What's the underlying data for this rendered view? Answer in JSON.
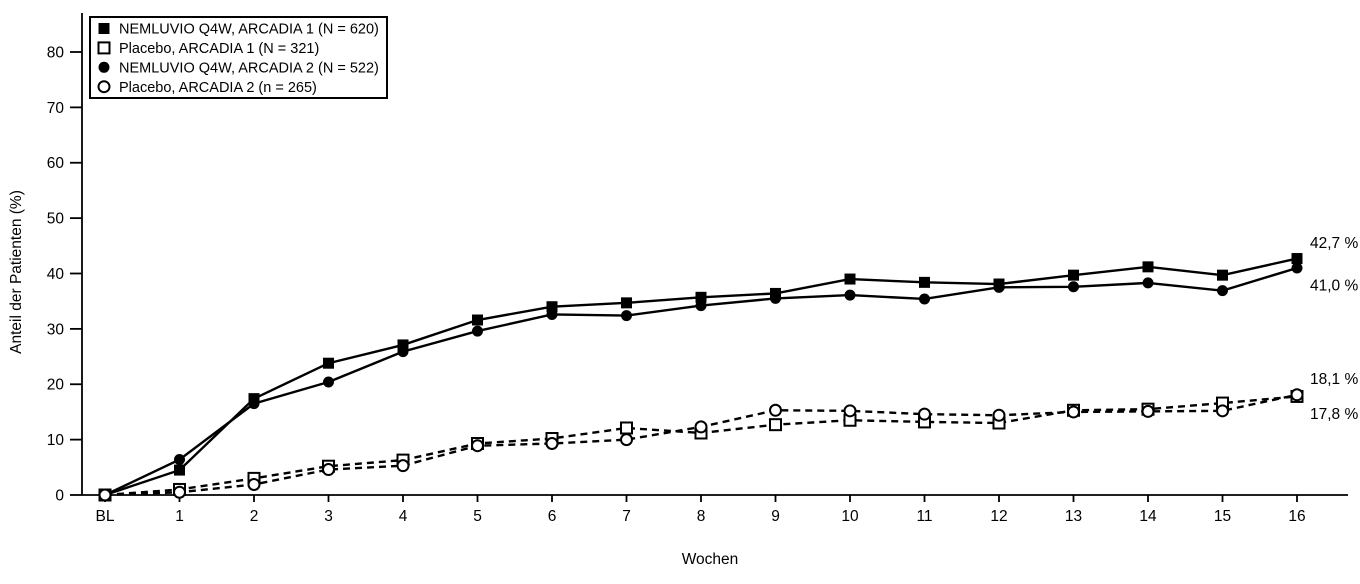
{
  "page": {
    "background": "#ffffff",
    "foreground": "#000000"
  },
  "chart_data": {
    "type": "line",
    "title": "",
    "xlabel": "Wochen",
    "ylabel": "Anteil der Patienten (%)",
    "x_categories": [
      "BL",
      "1",
      "2",
      "3",
      "4",
      "5",
      "6",
      "7",
      "8",
      "9",
      "10",
      "11",
      "12",
      "13",
      "14",
      "15",
      "16"
    ],
    "ylim": [
      0,
      80
    ],
    "y_ticks": [
      0,
      10,
      20,
      30,
      40,
      50,
      60,
      70,
      80
    ],
    "grid": false,
    "legend_position": "top-left",
    "series": [
      {
        "name": "NEMLUVIO Q4W, ARCADIA 1 (N = 620)",
        "marker": "filled-square",
        "line_style": "solid",
        "color": "#000000",
        "values": [
          0,
          4.5,
          17.4,
          23.8,
          27.1,
          31.6,
          34.0,
          34.7,
          35.7,
          36.4,
          39.0,
          38.4,
          38.1,
          39.7,
          41.2,
          39.7,
          42.7
        ],
        "end_label": "42,7 %",
        "end_label_position": "above"
      },
      {
        "name": "Placebo, ARCADIA 1 (N = 321)",
        "marker": "open-square",
        "line_style": "dashed",
        "color": "#000000",
        "values": [
          0,
          1.0,
          3.0,
          5.2,
          6.3,
          9.3,
          10.2,
          12.1,
          11.2,
          12.7,
          13.5,
          13.2,
          13.0,
          15.3,
          15.5,
          16.6,
          17.8
        ],
        "end_label": "17,8 %",
        "end_label_position": "below"
      },
      {
        "name": "NEMLUVIO Q4W, ARCADIA 2 (N = 522)",
        "marker": "filled-circle",
        "line_style": "solid",
        "color": "#000000",
        "values": [
          0,
          6.4,
          16.5,
          20.4,
          25.9,
          29.6,
          32.6,
          32.4,
          34.2,
          35.5,
          36.1,
          35.4,
          37.5,
          37.6,
          38.3,
          36.9,
          41.0
        ],
        "end_label": "41,0 %",
        "end_label_position": "below"
      },
      {
        "name": "Placebo, ARCADIA 2 (n = 265)",
        "marker": "open-circle",
        "line_style": "dashed",
        "color": "#000000",
        "values": [
          0,
          0.5,
          1.9,
          4.6,
          5.3,
          8.9,
          9.3,
          10.0,
          12.3,
          15.3,
          15.2,
          14.6,
          14.4,
          15.0,
          15.1,
          15.2,
          18.1
        ],
        "end_label": "18,1 %",
        "end_label_position": "above"
      }
    ]
  }
}
